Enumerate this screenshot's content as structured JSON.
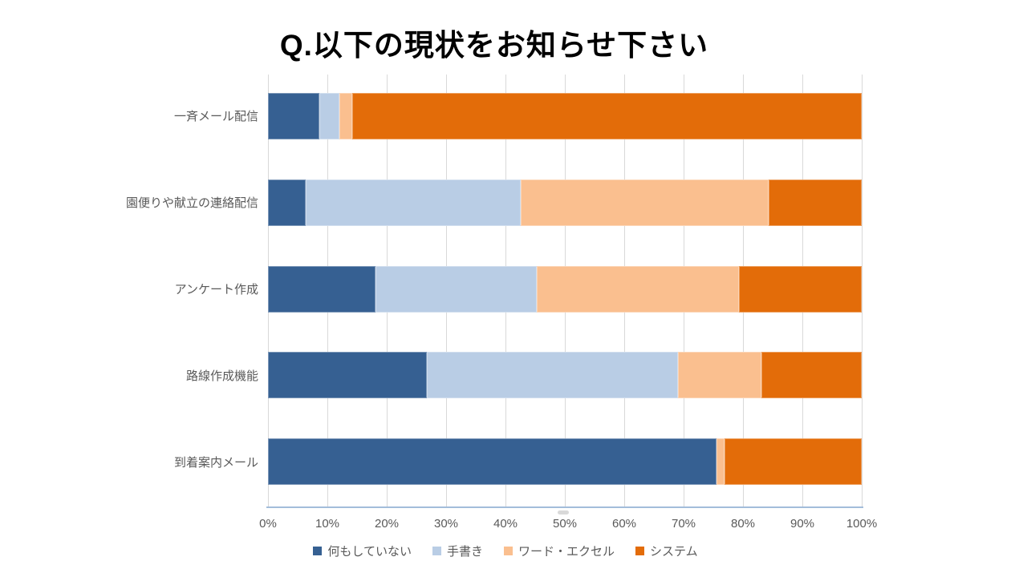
{
  "title": "Q.以下の現状をお知らせ下さい",
  "colors": {
    "background": "#ffffff",
    "title_text": "#000000",
    "label_text": "#595959",
    "gridline": "#d9d9d9",
    "axis_line": "#a3bdda",
    "scroll_thumb": "#d9d9d9",
    "series": [
      "#366092",
      "#b9cde5",
      "#fabf8f",
      "#e36c09"
    ]
  },
  "chart_data": {
    "type": "bar",
    "orientation": "horizontal",
    "stacked": true,
    "stacked_to_100_percent": true,
    "title": "Q.以下の現状をお知らせ下さい",
    "categories": [
      "一斉メール配信",
      "園便りや献立の連絡配信",
      "アンケート作成",
      "路線作成機能",
      "到着案内メール"
    ],
    "series": [
      {
        "name": "何もしていない",
        "color": "#366092",
        "values": [
          8.6,
          6.4,
          18.1,
          26.7,
          75.5
        ]
      },
      {
        "name": "手書き",
        "color": "#b9cde5",
        "values": [
          3.4,
          36.2,
          27.2,
          42.3,
          0
        ]
      },
      {
        "name": "ワード・エクセル",
        "color": "#fabf8f",
        "values": [
          2.2,
          41.7,
          34.0,
          14.1,
          1.4
        ]
      },
      {
        "name": "システム",
        "color": "#e36c09",
        "values": [
          85.8,
          15.7,
          20.7,
          16.9,
          23.1
        ]
      }
    ],
    "x_ticks": [
      "0%",
      "10%",
      "20%",
      "30%",
      "40%",
      "50%",
      "60%",
      "70%",
      "80%",
      "90%",
      "100%"
    ],
    "xlim": [
      0,
      100
    ],
    "grid": "vertical",
    "legend_position": "bottom"
  }
}
